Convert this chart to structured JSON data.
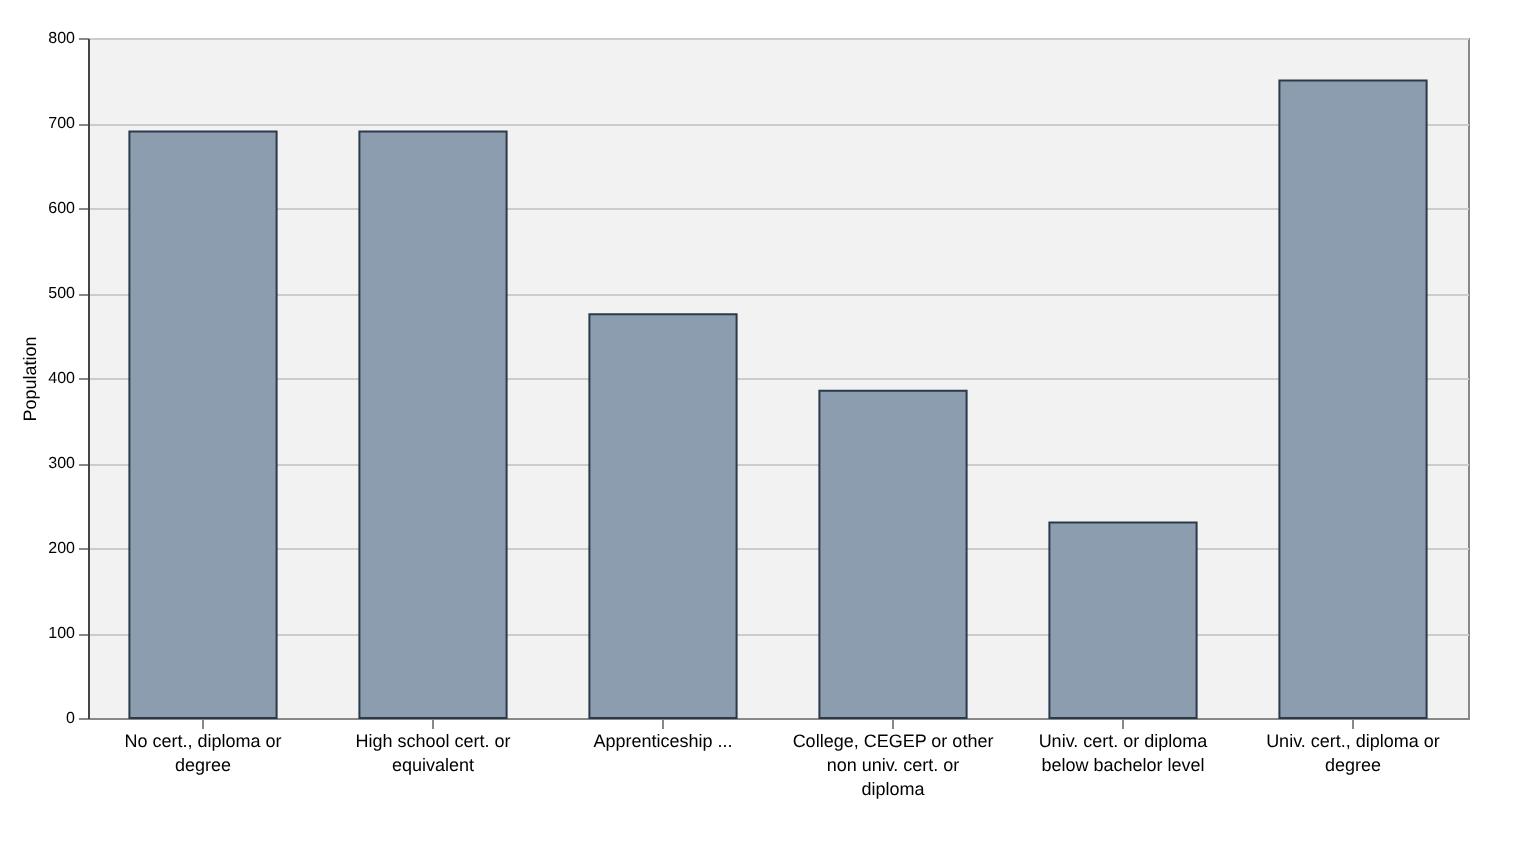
{
  "chart_data": {
    "type": "bar",
    "ylabel": "Population",
    "categories": [
      "No cert., diploma or degree",
      "High school cert. or equivalent",
      "Apprenticeship ...",
      "College, CEGEP or other non univ. cert. or diploma",
      "Univ. cert. or diploma below bachelor level",
      "Univ. cert., diploma or degree"
    ],
    "values": [
      690,
      690,
      475,
      385,
      230,
      750
    ],
    "color": "#8c9db0",
    "ylim": [
      0,
      800
    ],
    "yticks": [
      0,
      100,
      200,
      300,
      400,
      500,
      600,
      700,
      800
    ],
    "grid": "y"
  }
}
